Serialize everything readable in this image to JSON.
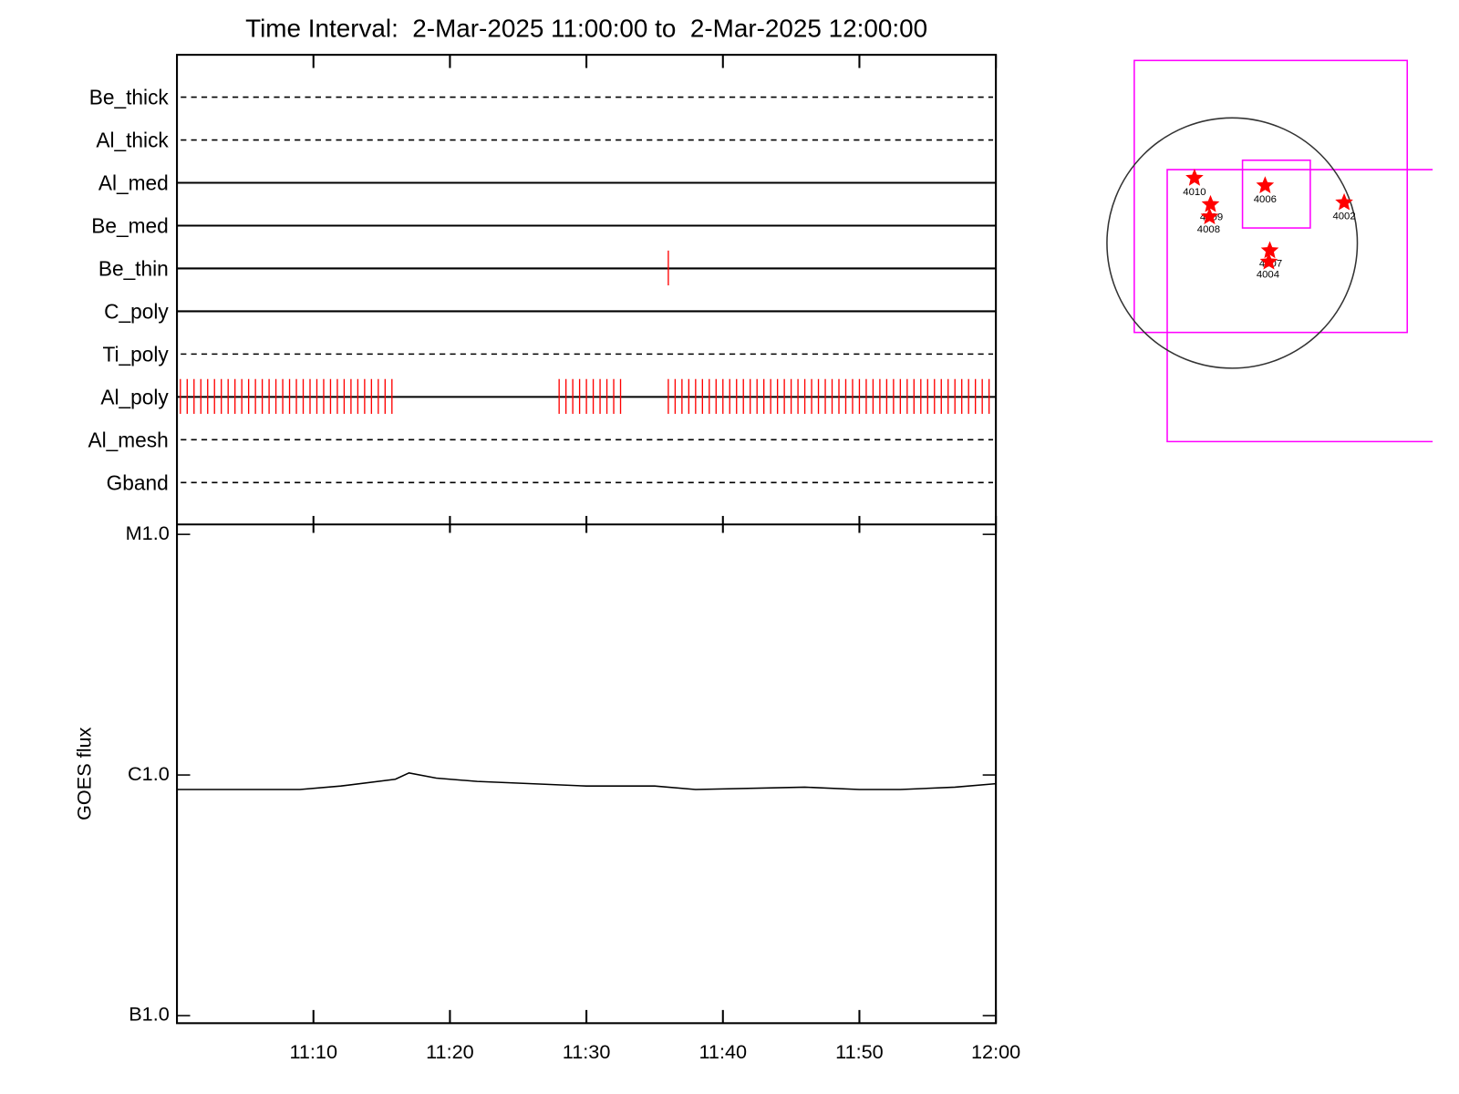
{
  "chart_data": [
    {
      "type": "timeline",
      "title": "Time Interval:  2-Mar-2025 11:00:00 to  2-Mar-2025 12:00:00",
      "categories": [
        "Be_thick",
        "Al_thick",
        "Al_med",
        "Be_med",
        "Be_thin",
        "C_poly",
        "Ti_poly",
        "Al_poly",
        "Al_mesh",
        "Gband"
      ],
      "dashed": [
        true,
        true,
        false,
        false,
        false,
        false,
        true,
        false,
        true,
        true
      ],
      "color": "#ff0000",
      "xlim": [
        "11:00",
        "12:00"
      ],
      "events": [
        [],
        [],
        [],
        [],
        [
          "11:36:00"
        ],
        [],
        [],
        [
          "11:00:15",
          "11:00:45",
          "11:01:15",
          "11:01:45",
          "11:02:15",
          "11:02:45",
          "11:03:15",
          "11:03:45",
          "11:04:15",
          "11:04:45",
          "11:05:15",
          "11:05:45",
          "11:06:15",
          "11:06:45",
          "11:07:15",
          "11:07:45",
          "11:08:15",
          "11:08:45",
          "11:09:15",
          "11:09:45",
          "11:10:15",
          "11:10:45",
          "11:11:15",
          "11:11:45",
          "11:12:15",
          "11:12:45",
          "11:13:15",
          "11:13:45",
          "11:14:15",
          "11:14:45",
          "11:15:15",
          "11:15:45",
          "11:28:00",
          "11:28:30",
          "11:29:00",
          "11:29:30",
          "11:30:00",
          "11:30:30",
          "11:31:00",
          "11:31:30",
          "11:32:00",
          "11:32:30",
          "11:36:00",
          "11:36:30",
          "11:37:00",
          "11:37:30",
          "11:38:00",
          "11:38:30",
          "11:39:00",
          "11:39:30",
          "11:40:00",
          "11:40:30",
          "11:41:00",
          "11:41:30",
          "11:42:00",
          "11:42:30",
          "11:43:00",
          "11:43:30",
          "11:44:00",
          "11:44:30",
          "11:45:00",
          "11:45:30",
          "11:46:00",
          "11:46:30",
          "11:47:00",
          "11:47:30",
          "11:48:00",
          "11:48:30",
          "11:49:00",
          "11:49:30",
          "11:50:00",
          "11:50:30",
          "11:51:00",
          "11:51:30",
          "11:52:00",
          "11:52:30",
          "11:53:00",
          "11:53:30",
          "11:54:00",
          "11:54:30",
          "11:55:00",
          "11:55:30",
          "11:56:00",
          "11:56:30",
          "11:57:00",
          "11:57:30",
          "11:58:00",
          "11:58:30",
          "11:59:00",
          "11:59:30"
        ],
        [],
        []
      ]
    },
    {
      "type": "line",
      "y_label": "GOES flux",
      "log_scale": true,
      "color": "#000000",
      "x": [
        "11:00",
        "11:09",
        "11:12",
        "11:16",
        "11:17",
        "11:19",
        "11:22",
        "11:30",
        "11:35",
        "11:38",
        "11:46",
        "11:50",
        "11:53",
        "11:57",
        "12:00"
      ],
      "values": [
        8.7e-07,
        8.7e-07,
        9e-07,
        9.6e-07,
        1.02e-06,
        9.7e-07,
        9.4e-07,
        9e-07,
        9e-07,
        8.7e-07,
        8.9e-07,
        8.7e-07,
        8.7e-07,
        8.9e-07,
        9.2e-07
      ],
      "xlim": [
        "11:00",
        "12:00"
      ],
      "xticks": [
        "11:10",
        "11:20",
        "11:30",
        "11:40",
        "11:50",
        "12:00"
      ],
      "ylim": [
        9.3e-08,
        1.1e-05
      ],
      "yticks": [
        {
          "value": 1e-07,
          "label": "B1.0"
        },
        {
          "value": 1e-06,
          "label": "C1.0"
        },
        {
          "value": 1e-05,
          "label": "M1.0"
        }
      ]
    }
  ],
  "map": {
    "labels": [
      "4010",
      "4009",
      "4008",
      "4006",
      "4002",
      "4007",
      "4004"
    ]
  }
}
